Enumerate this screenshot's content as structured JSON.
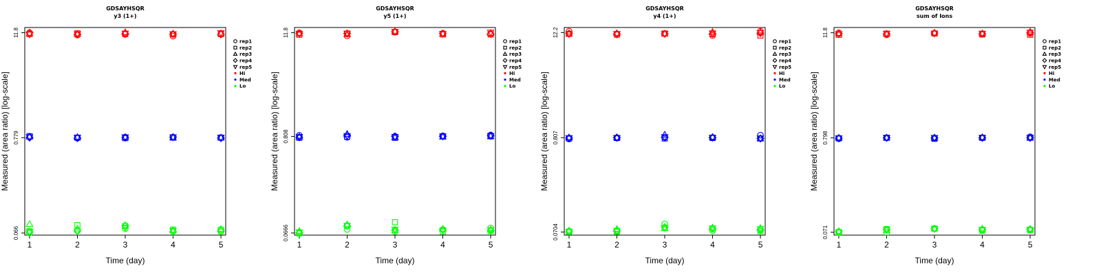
{
  "figure": {
    "legend_position": "right-of-plot",
    "legend_entries": [
      {
        "label": "rep1",
        "shape": "circle",
        "color": "#000000"
      },
      {
        "label": "rep2",
        "shape": "square",
        "color": "#000000"
      },
      {
        "label": "rep3",
        "shape": "triangle-up",
        "color": "#000000"
      },
      {
        "label": "rep4",
        "shape": "diamond",
        "color": "#000000"
      },
      {
        "label": "rep5",
        "shape": "triangle-down",
        "color": "#000000"
      },
      {
        "label": "Hi",
        "shape": "dot",
        "color": "#ff0000"
      },
      {
        "label": "Med",
        "shape": "dot",
        "color": "#0000ff"
      },
      {
        "label": "Lo",
        "shape": "dot",
        "color": "#00ff00"
      }
    ],
    "rep_shapes": [
      "circle",
      "square",
      "triangle-up",
      "diamond",
      "triangle-down"
    ],
    "colors": {
      "Hi": "#ff0000",
      "Med": "#0000ff",
      "Lo": "#00ff00"
    }
  },
  "chart_data": [
    {
      "type": "scatter",
      "title": "GDSAYHSQR",
      "subtitle": "y3 (1+)",
      "xlabel": "Time (day)",
      "ylabel": "Measured (area ratio) [log-scale]",
      "y_scale": "log",
      "x": [
        1,
        2,
        3,
        4,
        5
      ],
      "xlim": [
        0.9,
        5.1
      ],
      "ylim": [
        0.0625,
        13.5
      ],
      "y_ticks": [
        0.066,
        0.779,
        11.8
      ],
      "y_tick_labels": [
        "0.066",
        "0.779",
        "11.8"
      ],
      "grid": false,
      "series": [
        {
          "group": "Hi",
          "values": [
            [
              11.8,
              11.1,
              11.3,
              10.8,
              11.3
            ],
            [
              11.4,
              11.6,
              11.4,
              11.3,
              11.4
            ],
            [
              11.6,
              11.4,
              11.9,
              11.5,
              11.6
            ],
            [
              11.8,
              11.3,
              11.5,
              11.4,
              11.3
            ],
            [
              11.3,
              11.4,
              11.6,
              11.4,
              11.7
            ]
          ]
        },
        {
          "group": "Med",
          "values": [
            [
              0.79,
              0.77,
              0.79,
              0.79,
              0.78
            ],
            [
              0.81,
              0.78,
              0.77,
              0.78,
              0.78
            ],
            [
              0.8,
              0.79,
              0.79,
              0.78,
              0.78
            ],
            [
              0.78,
              0.77,
              0.78,
              0.79,
              0.77
            ],
            [
              0.79,
              0.78,
              0.79,
              0.79,
              0.78
            ]
          ]
        },
        {
          "group": "Lo",
          "values": [
            [
              0.066,
              0.07,
              0.074,
              0.069,
              0.068
            ],
            [
              0.069,
              0.081,
              0.079,
              0.072,
              0.072
            ],
            [
              0.083,
              0.074,
              0.081,
              0.071,
              0.073
            ],
            [
              0.068,
              0.07,
              0.08,
              0.068,
              0.07
            ],
            [
              0.068,
              0.069,
              0.076,
              0.07,
              0.069
            ]
          ]
        }
      ]
    },
    {
      "type": "scatter",
      "title": "GDSAYHSQR",
      "subtitle": "y5 (1+)",
      "xlabel": "Time (day)",
      "ylabel": "Measured (area ratio) [log-scale]",
      "y_scale": "log",
      "x": [
        1,
        2,
        3,
        4,
        5
      ],
      "xlim": [
        0.9,
        5.1
      ],
      "ylim": [
        0.063,
        13.5
      ],
      "y_ticks": [
        0.0666,
        0.808,
        11.8
      ],
      "y_tick_labels": [
        "0.0666",
        "0.808",
        "11.8"
      ],
      "grid": false,
      "series": [
        {
          "group": "Hi",
          "values": [
            [
              11.8,
              10.9,
              12.0,
              11.6,
              11.5
            ],
            [
              11.2,
              11.5,
              12.0,
              11.3,
              11.3
            ],
            [
              11.5,
              11.3,
              12.2,
              11.5,
              11.7
            ],
            [
              11.6,
              11.6,
              12.1,
              11.6,
              11.4
            ],
            [
              11.5,
              11.6,
              12.1,
              11.5,
              11.9
            ]
          ]
        },
        {
          "group": "Med",
          "values": [
            [
              0.83,
              0.79,
              0.81,
              0.82,
              0.84
            ],
            [
              0.78,
              0.8,
              0.78,
              0.81,
              0.81
            ],
            [
              0.8,
              0.86,
              0.79,
              0.8,
              0.81
            ],
            [
              0.79,
              0.83,
              0.81,
              0.81,
              0.82
            ],
            [
              0.8,
              0.82,
              0.8,
              0.81,
              0.82
            ]
          ]
        },
        {
          "group": "Lo",
          "values": [
            [
              0.066,
              0.073,
              0.069,
              0.073,
              0.076
            ],
            [
              0.066,
              0.08,
              0.088,
              0.069,
              0.07
            ],
            [
              0.07,
              0.083,
              0.071,
              0.074,
              0.073
            ],
            [
              0.067,
              0.08,
              0.072,
              0.072,
              0.071
            ],
            [
              0.068,
              0.08,
              0.073,
              0.071,
              0.072
            ]
          ]
        }
      ]
    },
    {
      "type": "scatter",
      "title": "GDSAYHSQR",
      "subtitle": "y4 (1+)",
      "xlabel": "Time (day)",
      "ylabel": "Measured (area ratio) [log-scale]",
      "y_scale": "log",
      "x": [
        1,
        2,
        3,
        4,
        5
      ],
      "xlim": [
        0.9,
        5.1
      ],
      "ylim": [
        0.065,
        13.9
      ],
      "y_ticks": [
        0.0704,
        0.807,
        12.2
      ],
      "y_tick_labels": [
        "0.0704",
        "0.807",
        "12.2"
      ],
      "grid": false,
      "series": [
        {
          "group": "Hi",
          "values": [
            [
              12.6,
              11.5,
              11.9,
              11.3,
              12.6
            ],
            [
              11.8,
              11.6,
              11.9,
              11.7,
              11.3
            ],
            [
              11.9,
              12.0,
              11.8,
              12.4,
              12.3
            ],
            [
              11.9,
              11.8,
              11.8,
              11.8,
              12.0
            ],
            [
              11.7,
              11.8,
              11.9,
              12.0,
              12.1
            ]
          ]
        },
        {
          "group": "Med",
          "values": [
            [
              0.78,
              0.8,
              0.81,
              0.81,
              0.86
            ],
            [
              0.79,
              0.8,
              0.79,
              0.8,
              0.79
            ],
            [
              0.81,
              0.81,
              0.87,
              0.82,
              0.79
            ],
            [
              0.8,
              0.81,
              0.81,
              0.81,
              0.79
            ],
            [
              0.8,
              0.8,
              0.82,
              0.81,
              0.79
            ]
          ]
        },
        {
          "group": "Lo",
          "values": [
            [
              0.072,
              0.072,
              0.087,
              0.073,
              0.074
            ],
            [
              0.071,
              0.071,
              0.078,
              0.076,
              0.072
            ],
            [
              0.073,
              0.076,
              0.078,
              0.079,
              0.078
            ],
            [
              0.072,
              0.073,
              0.08,
              0.077,
              0.075
            ],
            [
              0.071,
              0.073,
              0.079,
              0.078,
              0.076
            ]
          ]
        }
      ]
    },
    {
      "type": "scatter",
      "title": "GDSAYHSQR",
      "subtitle": "sum of Ions",
      "xlabel": "Time (day)",
      "ylabel": "Measured (area ratio) [log-scale]",
      "y_scale": "log",
      "x": [
        1,
        2,
        3,
        4,
        5
      ],
      "xlim": [
        0.9,
        5.1
      ],
      "ylim": [
        0.066,
        13.5
      ],
      "y_ticks": [
        0.071,
        0.798,
        11.8
      ],
      "y_tick_labels": [
        "0.071",
        "0.798",
        "11.8"
      ],
      "grid": false,
      "series": [
        {
          "group": "Hi",
          "values": [
            [
              11.8,
              11.2,
              11.6,
              11.4,
              11.6
            ],
            [
              11.2,
              11.5,
              11.6,
              11.3,
              11.2
            ],
            [
              11.5,
              11.5,
              11.8,
              11.6,
              12.1
            ],
            [
              11.5,
              11.4,
              11.7,
              11.5,
              11.8
            ],
            [
              11.4,
              11.6,
              11.6,
              11.6,
              11.9
            ]
          ]
        },
        {
          "group": "Med",
          "values": [
            [
              0.78,
              0.8,
              0.79,
              0.8,
              0.82
            ],
            [
              0.79,
              0.8,
              0.78,
              0.8,
              0.8
            ],
            [
              0.8,
              0.8,
              0.8,
              0.81,
              0.8
            ],
            [
              0.79,
              0.8,
              0.8,
              0.8,
              0.8
            ],
            [
              0.79,
              0.8,
              0.8,
              0.8,
              0.8
            ]
          ]
        },
        {
          "group": "Lo",
          "values": [
            [
              0.072,
              0.07,
              0.078,
              0.075,
              0.076
            ],
            [
              0.071,
              0.077,
              0.078,
              0.074,
              0.075
            ],
            [
              0.073,
              0.075,
              0.078,
              0.078,
              0.077
            ],
            [
              0.072,
              0.076,
              0.078,
              0.076,
              0.077
            ],
            [
              0.071,
              0.076,
              0.077,
              0.076,
              0.076
            ]
          ]
        }
      ]
    }
  ]
}
